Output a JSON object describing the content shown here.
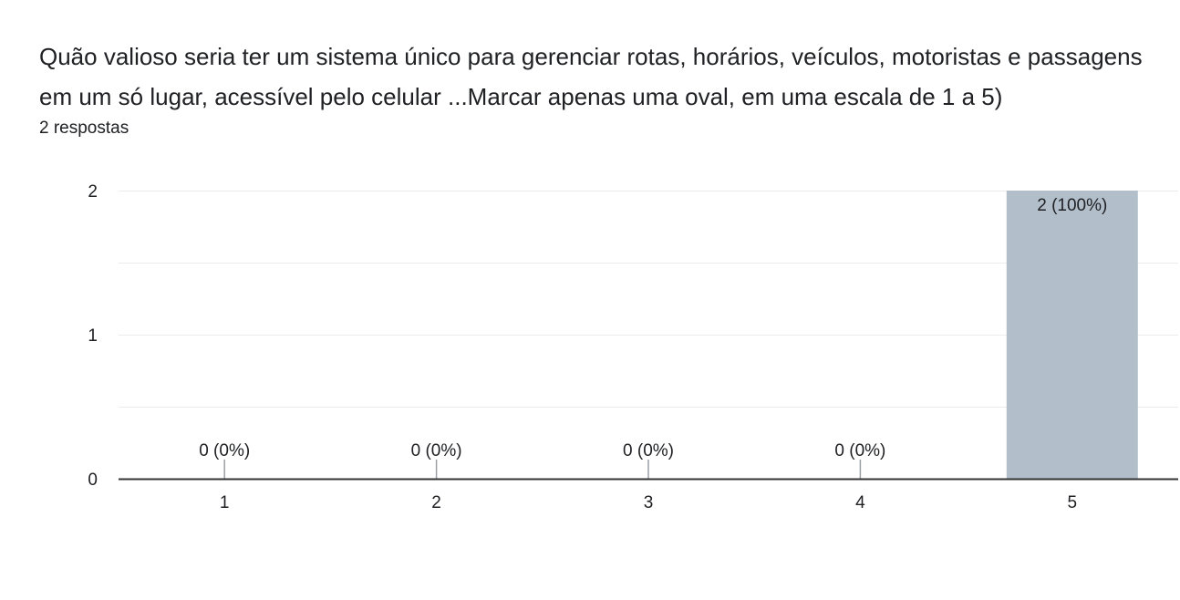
{
  "question": {
    "title": "Quão valioso seria ter um sistema único para gerenciar rotas, horários, veículos, motoristas e passagens em um só lugar, acessível pelo celular ...Marcar apenas uma oval, em uma escala de 1 a 5)",
    "response_count": "2 respostas"
  },
  "colors": {
    "bar": "#b2bfcb",
    "grid": "#ececec",
    "axis": "#333333",
    "text": "#202124",
    "stub": "#9aa0a6"
  },
  "chart_data": {
    "type": "bar",
    "categories": [
      "1",
      "2",
      "3",
      "4",
      "5"
    ],
    "values": [
      0,
      0,
      0,
      0,
      2
    ],
    "data_labels": [
      "0 (0%)",
      "0 (0%)",
      "0 (0%)",
      "0 (0%)",
      "2 (100%)"
    ],
    "ylim": [
      0,
      2
    ],
    "yticks": [
      0,
      1,
      2
    ],
    "grid": true,
    "legend": "none",
    "title": "",
    "xlabel": "",
    "ylabel": ""
  }
}
